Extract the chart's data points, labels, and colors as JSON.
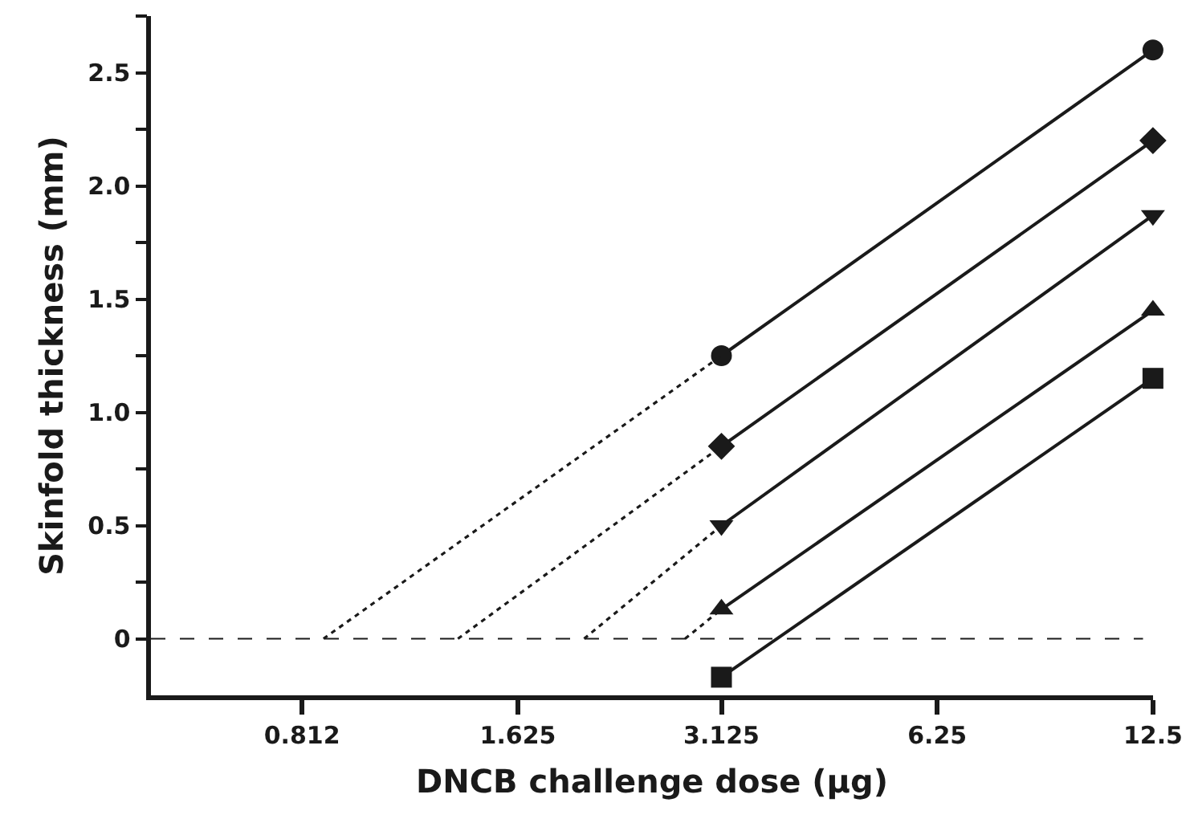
{
  "chart_data": {
    "type": "line",
    "xlabel": "DNCB challenge dose (μg)",
    "ylabel": "Skinfold thickness (mm)",
    "log": "x",
    "line_style": "solid",
    "xlim": [
      0.5,
      12.5
    ],
    "xticks": [
      0.812,
      1.625,
      3.125,
      6.25,
      12.5
    ],
    "ylim": [
      -0.25,
      2.75
    ],
    "yticks": [
      0,
      {
        "value": 0.25,
        "label": null
      },
      0.5,
      {
        "value": 0.75,
        "label": null
      },
      {
        "value": 1,
        "label": "1.0"
      },
      {
        "value": 1.25,
        "label": null
      },
      1.5,
      {
        "value": 1.75,
        "label": null
      },
      {
        "value": 2,
        "label": "2.0"
      },
      {
        "value": 2.25,
        "label": null
      },
      2.5,
      {
        "value": 2.75,
        "label": null
      }
    ],
    "x": [
      3.125,
      12.5
    ],
    "series": [
      {
        "color": "#1a1a1a",
        "marker": "circle",
        "values": [
          1.25,
          2.6
        ]
      },
      {
        "color": "#1a1a1a",
        "marker": "diamond",
        "values": [
          0.85,
          2.2
        ]
      },
      {
        "color": "#1a1a1a",
        "marker": "triangle-down",
        "values": [
          0.5,
          1.87
        ]
      },
      {
        "color": "#1a1a1a",
        "marker": "triangle",
        "values": [
          0.13,
          1.45
        ]
      },
      {
        "color": "#1a1a1a",
        "marker": "square",
        "values": [
          -0.17,
          1.15
        ]
      },
      {
        "color": "#1a1a1a",
        "marker": "none",
        "line_style": "dotted",
        "x": [
          0.87,
          3.125
        ],
        "values": [
          0,
          1.25
        ]
      },
      {
        "color": "#1a1a1a",
        "marker": "none",
        "line_style": "dotted",
        "x": [
          1.34,
          3.125
        ],
        "values": [
          0,
          0.85
        ]
      },
      {
        "color": "#1a1a1a",
        "marker": "none",
        "line_style": "dotted",
        "x": [
          2.01,
          3.125
        ],
        "values": [
          0,
          0.5
        ]
      },
      {
        "color": "#1a1a1a",
        "marker": "none",
        "line_style": "dotted",
        "x": [
          2.78,
          3.125
        ],
        "values": [
          0,
          0.13
        ]
      }
    ],
    "ref_lines": [
      {
        "axis": "y",
        "value": 0,
        "color": "#1a1a1a",
        "line_style": "dashed"
      }
    ]
  }
}
